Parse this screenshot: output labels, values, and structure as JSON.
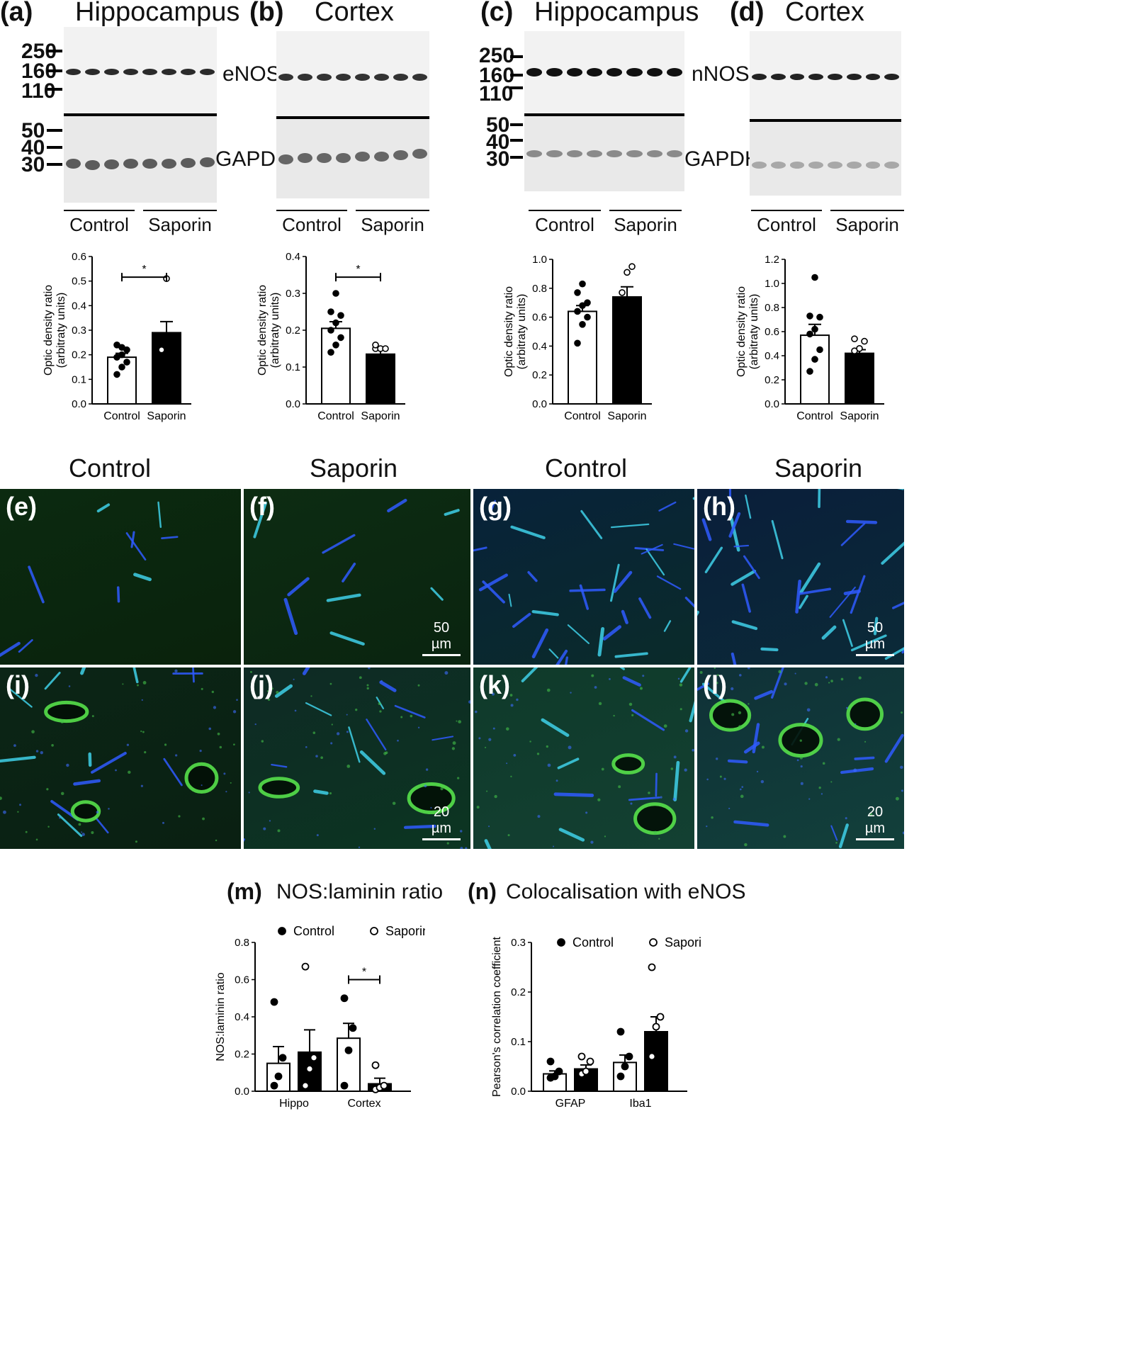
{
  "blots": [
    {
      "letter": "(a)",
      "title": "Hippocampus",
      "protein_top": "eNOS",
      "protein_bottom": "GAPDH",
      "mw_top": [
        "250",
        "160",
        "110"
      ],
      "mw_bottom": [
        "50",
        "40",
        "30"
      ],
      "lanes": [
        "Control",
        "Saporin"
      ]
    },
    {
      "letter": "(b)",
      "title": "Cortex",
      "lanes": [
        "Control",
        "Saporin"
      ]
    },
    {
      "letter": "(c)",
      "title": "Hippocampus",
      "protein_top": "nNOS",
      "protein_bottom": "GAPDH",
      "mw_top": [
        "250",
        "160",
        "110"
      ],
      "mw_bottom": [
        "50",
        "40",
        "30"
      ],
      "lanes": [
        "Control",
        "Saporin"
      ]
    },
    {
      "letter": "(d)",
      "title": "Cortex",
      "lanes": [
        "Control",
        "Saporin"
      ]
    }
  ],
  "chart_data": [
    {
      "id": "a",
      "type": "bar",
      "ylabel": "Optic density ratio\n(arbitraty units)",
      "categories": [
        "Control",
        "Saporin"
      ],
      "values": [
        0.19,
        0.29
      ],
      "sem": [
        0.016,
        0.045
      ],
      "ylim": [
        0,
        0.6
      ],
      "yticks": [
        "0.0",
        "0.1",
        "0.2",
        "0.3",
        "0.4",
        "0.5",
        "0.6"
      ],
      "points": [
        [
          0.12,
          0.15,
          0.17,
          0.19,
          0.2,
          0.22,
          0.24,
          0.23
        ],
        [
          0.22,
          0.51
        ]
      ],
      "significance": "*"
    },
    {
      "id": "b",
      "type": "bar",
      "ylabel": "Optic density ratio\n(arbitraty units)",
      "categories": [
        "Control",
        "Saporin"
      ],
      "values": [
        0.205,
        0.135
      ],
      "sem": [
        0.018,
        0.018
      ],
      "ylim": [
        0,
        0.4
      ],
      "yticks": [
        "0.0",
        "0.1",
        "0.2",
        "0.3",
        "0.4"
      ],
      "points": [
        [
          0.14,
          0.16,
          0.18,
          0.2,
          0.22,
          0.24,
          0.25,
          0.3
        ],
        [
          0.15,
          0.15,
          0.15,
          0.16
        ]
      ],
      "significance": "*"
    },
    {
      "id": "c",
      "type": "bar",
      "ylabel": "Optic density ratio\n(arbitraty units)",
      "categories": [
        "Control",
        "Saporin"
      ],
      "values": [
        0.64,
        0.74
      ],
      "sem": [
        0.04,
        0.07
      ],
      "ylim": [
        0,
        1.0
      ],
      "yticks": [
        "0.0",
        "0.2",
        "0.4",
        "0.6",
        "0.8",
        "1.0"
      ],
      "points": [
        [
          0.42,
          0.55,
          0.6,
          0.64,
          0.68,
          0.7,
          0.77,
          0.83
        ],
        [
          0.77,
          0.91,
          0.95
        ]
      ],
      "significance": ""
    },
    {
      "id": "d",
      "type": "bar",
      "ylabel": "Optic density ratio\n(arbitraty units)",
      "categories": [
        "Control",
        "Saporin"
      ],
      "values": [
        0.57,
        0.42
      ],
      "sem": [
        0.09,
        0.03
      ],
      "ylim": [
        0,
        1.2
      ],
      "yticks": [
        "0.0",
        "0.2",
        "0.4",
        "0.6",
        "0.8",
        "1.0",
        "1.2"
      ],
      "points": [
        [
          0.27,
          0.37,
          0.45,
          0.58,
          0.62,
          0.72,
          0.73,
          1.05
        ],
        [
          0.44,
          0.46,
          0.52,
          0.54
        ]
      ],
      "significance": ""
    },
    {
      "id": "m",
      "type": "bar",
      "title": "NOS:laminin ratio",
      "ylabel": "NOS:laminin ratio",
      "categories": [
        "Hippo",
        "Cortex"
      ],
      "series": [
        {
          "name": "Control",
          "values": [
            0.15,
            0.285
          ],
          "sem": [
            0.09,
            0.08
          ],
          "points": [
            [
              0.03,
              0.08,
              0.18,
              0.48
            ],
            [
              0.03,
              0.22,
              0.34,
              0.5
            ]
          ]
        },
        {
          "name": "Saporin",
          "values": [
            0.21,
            0.04
          ],
          "sem": [
            0.12,
            0.03
          ],
          "points": [
            [
              0.03,
              0.12,
              0.18,
              0.67
            ],
            [
              0.01,
              0.02,
              0.03,
              0.14
            ]
          ]
        }
      ],
      "ylim": [
        0,
        0.8
      ],
      "yticks": [
        "0.0",
        "0.2",
        "0.4",
        "0.6",
        "0.8"
      ],
      "significance": "*"
    },
    {
      "id": "n",
      "type": "bar",
      "title": "Colocalisation with eNOS",
      "ylabel": "Pearson's correlation coefficient",
      "categories": [
        "GFAP",
        "Iba1"
      ],
      "series": [
        {
          "name": "Control",
          "values": [
            0.035,
            0.058
          ],
          "sem": [
            0.006,
            0.015
          ],
          "points": [
            [
              0.027,
              0.03,
              0.04,
              0.06
            ],
            [
              0.03,
              0.05,
              0.07,
              0.12
            ]
          ]
        },
        {
          "name": "Saporin",
          "values": [
            0.045,
            0.12
          ],
          "sem": [
            0.008,
            0.03
          ],
          "points": [
            [
              0.035,
              0.04,
              0.06,
              0.07
            ],
            [
              0.07,
              0.13,
              0.15,
              0.25
            ]
          ]
        }
      ],
      "ylim": [
        0,
        0.3
      ],
      "yticks": [
        "0.0",
        "0.1",
        "0.2",
        "0.3"
      ],
      "significance": ""
    }
  ],
  "micro": {
    "headings": [
      "Control",
      "Saporin",
      "Control",
      "Saporin"
    ],
    "panels": [
      "(e)",
      "(f)",
      "(g)",
      "(h)",
      "(i)",
      "(j)",
      "(k)",
      "(l)"
    ],
    "scale_top": "50 µm",
    "scale_bottom": "20 µm"
  },
  "sections": {
    "m_letter": "(m)",
    "m_title": "NOS:laminin ratio",
    "n_letter": "(n)",
    "n_title": "Colocalisation with eNOS"
  }
}
